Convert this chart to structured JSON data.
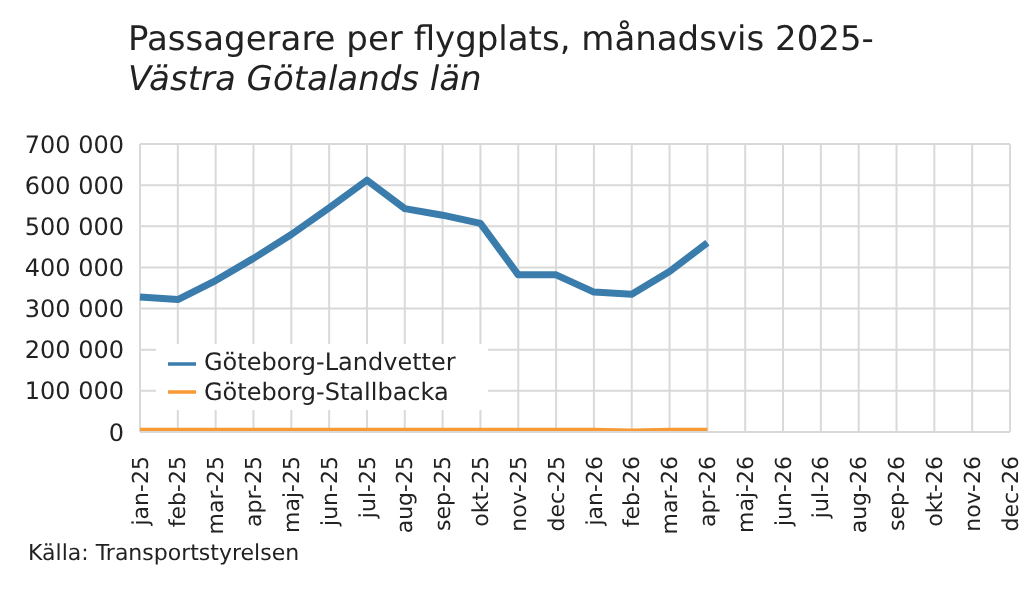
{
  "chart_data": {
    "type": "line",
    "title": "Passagerare per flygplats, månadsvis 2025-",
    "subtitle": "Västra Götalands län",
    "annotations": [
      "Källa: Transportstyrelsen"
    ],
    "categories": [
      "jan-25",
      "feb-25",
      "mar-25",
      "apr-25",
      "maj-25",
      "jun-25",
      "jul-25",
      "aug-25",
      "sep-25",
      "okt-25",
      "nov-25",
      "dec-25",
      "jan-26",
      "feb-26",
      "mar-26",
      "apr-26",
      "maj-26",
      "jun-26",
      "jul-26",
      "aug-26",
      "sep-26",
      "okt-26",
      "nov-26",
      "dec-26"
    ],
    "series": [
      {
        "name": "Göteborg-Landvetter",
        "color": "#3a7cab",
        "values": [
          328000,
          322000,
          368000,
          422000,
          480000,
          545000,
          612000,
          543000,
          527000,
          507000,
          382000,
          382000,
          340000,
          335000,
          390000,
          460000,
          null,
          null,
          null,
          null,
          null,
          null,
          null,
          null
        ]
      },
      {
        "name": "Göteborg-Stallbacka",
        "color": "#f79a35",
        "values": [
          2000,
          2000,
          2000,
          2000,
          2000,
          2000,
          2000,
          2000,
          2000,
          2000,
          2000,
          2000,
          2000,
          0,
          2000,
          2000,
          null,
          null,
          null,
          null,
          null,
          null,
          null,
          null
        ]
      }
    ],
    "ylim": [
      0,
      700000
    ],
    "yticks": [
      {
        "value": 0,
        "label": "0"
      },
      {
        "value": 100000,
        "label": "100 000"
      },
      {
        "value": 200000,
        "label": "200 000"
      },
      {
        "value": 300000,
        "label": "300 000"
      },
      {
        "value": 400000,
        "label": "400 000"
      },
      {
        "value": 500000,
        "label": "500 000"
      },
      {
        "value": 600000,
        "label": "600 000"
      },
      {
        "value": 700000,
        "label": "700 000"
      }
    ],
    "grid": true,
    "legend": "bottom left",
    "marker": "none",
    "line_style": "solid"
  }
}
